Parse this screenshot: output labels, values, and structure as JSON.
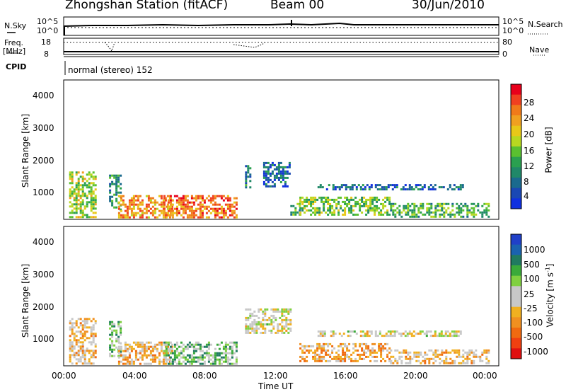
{
  "header": {
    "station": "Zhongshan Station (fitACF)",
    "beam": "Beam 00",
    "date": "30/Jun/2010"
  },
  "top_panels": {
    "nsky_label": "N.Sky",
    "nsearch_label": "N.Search",
    "noise_left_top": "10^5",
    "noise_left_bottom": "10^0",
    "noise_right_top": "10^5",
    "noise_right_bottom": "10^0",
    "freq_label_1": "Freq.",
    "freq_label_2": "[MHz]",
    "freq_ticks": [
      "18",
      "8"
    ],
    "nave_label": "Nave",
    "nave_ticks": [
      "80",
      "0"
    ],
    "cpid_label": "CPID",
    "cpid_text": "normal (stereo) 152"
  },
  "axes": {
    "ylabel": "Slant Range [km]",
    "xlabel": "Time UT",
    "yticks": [
      "4000",
      "3000",
      "2000",
      "1000"
    ],
    "xticks": [
      "00:00",
      "04:00",
      "08:00",
      "12:00",
      "16:00",
      "20:00",
      "00:00"
    ]
  },
  "power_colorbar": {
    "label": "Power [dB]",
    "ticks": [
      "28",
      "24",
      "20",
      "16",
      "12",
      "8",
      "4"
    ],
    "colors": [
      "#e8001b",
      "#f04020",
      "#f07a1a",
      "#f0a020",
      "#e8c818",
      "#b8d820",
      "#5ac030",
      "#2aa050",
      "#208868",
      "#1a6a8e",
      "#1a48b4",
      "#1030e0"
    ]
  },
  "velocity_colorbar": {
    "label": "Velocity [m s",
    "label_exp": "-1",
    "label_end": "]",
    "ticks": [
      "1000",
      "500",
      "100",
      "25",
      "-25",
      "-100",
      "-500",
      "-1000"
    ],
    "colors": [
      "#2040c8",
      "#1a62b0",
      "#207a60",
      "#3aaa3a",
      "#80d040",
      "#c8c8c8",
      "#c8c8c8",
      "#f0b020",
      "#f09020",
      "#f06a10",
      "#f04010",
      "#e01010"
    ]
  },
  "chart_data": [
    {
      "type": "heatmap",
      "title": "Power [dB]",
      "xlabel": "Time UT",
      "ylabel": "Slant Range [km]",
      "xlim": [
        0,
        24
      ],
      "ylim": [
        180,
        4600
      ],
      "color_range": [
        0,
        30
      ],
      "regions": [
        {
          "t0": 0.3,
          "t1": 1.8,
          "r0": 250,
          "r1": 1700,
          "value": 16
        },
        {
          "t0": 2.5,
          "t1": 3.2,
          "r0": 500,
          "r1": 1600,
          "value": 10
        },
        {
          "t0": 3.0,
          "t1": 6.0,
          "r0": 250,
          "r1": 950,
          "value": 22
        },
        {
          "t0": 5.5,
          "t1": 9.5,
          "r0": 250,
          "r1": 950,
          "value": 24
        },
        {
          "t0": 10.0,
          "t1": 10.3,
          "r0": 1200,
          "r1": 1900,
          "value": 8
        },
        {
          "t0": 11.0,
          "t1": 12.5,
          "r0": 1200,
          "r1": 2000,
          "value": 6
        },
        {
          "t0": 12.5,
          "t1": 13.0,
          "r0": 300,
          "r1": 700,
          "value": 12
        },
        {
          "t0": 13.0,
          "t1": 18.0,
          "r0": 300,
          "r1": 900,
          "value": 14
        },
        {
          "t0": 14.0,
          "t1": 22.0,
          "r0": 1150,
          "r1": 1300,
          "value": 6
        },
        {
          "t0": 18.0,
          "t1": 23.5,
          "r0": 250,
          "r1": 700,
          "value": 12
        }
      ]
    },
    {
      "type": "heatmap",
      "title": "Velocity [m s-1]",
      "xlabel": "Time UT",
      "ylabel": "Slant Range [km]",
      "xlim": [
        0,
        24
      ],
      "ylim": [
        180,
        4600
      ],
      "color_range": [
        -1000,
        1000
      ],
      "regions": [
        {
          "t0": 0.3,
          "t1": 1.8,
          "r0": 250,
          "r1": 1700,
          "value": -200
        },
        {
          "t0": 2.5,
          "t1": 3.2,
          "r0": 500,
          "r1": 1600,
          "value": 300
        },
        {
          "t0": 3.0,
          "t1": 6.0,
          "r0": 250,
          "r1": 950,
          "value": -250
        },
        {
          "t0": 5.5,
          "t1": 9.5,
          "r0": 250,
          "r1": 950,
          "value": 300
        },
        {
          "t0": 10.0,
          "t1": 12.5,
          "r0": 1200,
          "r1": 2000,
          "value": 0
        },
        {
          "t0": 13.0,
          "t1": 18.0,
          "r0": 300,
          "r1": 900,
          "value": -300
        },
        {
          "t0": 14.0,
          "t1": 22.0,
          "r0": 1150,
          "r1": 1300,
          "value": 0
        },
        {
          "t0": 18.0,
          "t1": 23.5,
          "r0": 250,
          "r1": 700,
          "value": -200
        }
      ]
    }
  ]
}
